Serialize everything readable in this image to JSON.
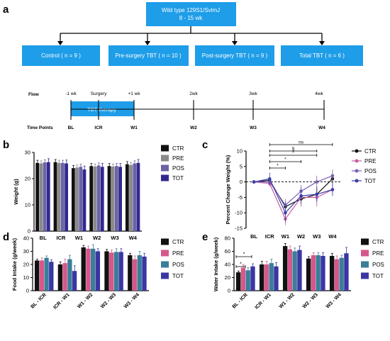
{
  "colors": {
    "box_fill": "#1e9de8",
    "box_text": "#ffffff",
    "axis": "#000000",
    "ctr": "#111111",
    "pre": "#d6578b",
    "pos": "#3a7e98",
    "tot": "#3b36a4",
    "b_pre": "#8a8a8a",
    "b_pos": "#6b63a6",
    "b_tot": "#31288f",
    "c_pre": "#c35e9f",
    "c_pos": "#7a5fb4",
    "c_tot": "#3a3da8"
  },
  "panel_a": {
    "label": "a",
    "top_box": {
      "line1": "Wild type 129S1/SvlmJ",
      "line2": "8 - 15 wk"
    },
    "groups": [
      {
        "text": "Control ( n = 9 )"
      },
      {
        "text": "Pre-surgery TBT ( n = 10 )"
      },
      {
        "text": "Post-surgery TBT ( n = 9 )"
      },
      {
        "text": "Total TBT ( n = 6 )"
      }
    ],
    "flow_label": "Flow",
    "time_points_label": "Time Points",
    "therapy_box": "TBT therapy",
    "flow_ticks": [
      "-1 wk",
      "Surgery",
      "+1 wk",
      "2wk",
      "3wk",
      "4wk"
    ],
    "time_points": [
      "BL",
      "ICR",
      "W1",
      "W2",
      "W3",
      "W4"
    ]
  },
  "chart_data": [
    {
      "panel": "b",
      "type": "bar",
      "ylabel": "Weight (g)",
      "ylim": [
        0,
        30
      ],
      "yticks": [
        0,
        10,
        20,
        30
      ],
      "categories": [
        "BL",
        "ICR",
        "W1",
        "W2",
        "W3",
        "W4"
      ],
      "legend": [
        "CTR",
        "PRE",
        "POS",
        "TOT"
      ],
      "series": [
        {
          "name": "CTR",
          "values": [
            26.0,
            26.3,
            24.0,
            24.8,
            24.8,
            25.5
          ],
          "err": [
            1.0,
            1.0,
            1.0,
            1.0,
            1.0,
            1.0
          ]
        },
        {
          "name": "PRE",
          "values": [
            25.8,
            26.0,
            24.2,
            24.6,
            24.6,
            25.2
          ],
          "err": [
            1.0,
            1.0,
            1.0,
            1.0,
            1.0,
            1.0
          ]
        },
        {
          "name": "POS",
          "values": [
            26.2,
            26.0,
            24.5,
            25.0,
            24.8,
            25.8
          ],
          "err": [
            1.0,
            1.0,
            1.0,
            1.0,
            1.0,
            1.0
          ]
        },
        {
          "name": "TOT",
          "values": [
            26.3,
            25.8,
            23.5,
            24.5,
            24.5,
            26.0
          ],
          "err": [
            1.3,
            1.3,
            1.3,
            1.3,
            1.3,
            1.3
          ]
        }
      ]
    },
    {
      "panel": "c",
      "type": "line",
      "ylabel": "Percent Change Weight (%)",
      "ylim": [
        -15,
        10
      ],
      "yticks": [
        10,
        5,
        0,
        -5,
        -10,
        -15
      ],
      "categories": [
        "BL",
        "ICR",
        "W1",
        "W2",
        "W3",
        "W4"
      ],
      "legend": [
        "CTR",
        "PRE",
        "POS",
        "TOT"
      ],
      "annotations": [
        "*",
        "*",
        "*",
        "§",
        "ns"
      ],
      "series": [
        {
          "name": "CTR",
          "values": [
            0,
            0.5,
            -8.0,
            -5.5,
            -4.0,
            1.0
          ],
          "err": [
            0,
            1.0,
            1.5,
            2.0,
            2.0,
            1.5
          ]
        },
        {
          "name": "PRE",
          "values": [
            0,
            -0.5,
            -12.0,
            -5.0,
            -5.0,
            -2.5
          ],
          "err": [
            0,
            1.0,
            2.0,
            3.0,
            3.0,
            2.0
          ]
        },
        {
          "name": "POS",
          "values": [
            0,
            0.0,
            -7.5,
            -3.0,
            0.0,
            2.0
          ],
          "err": [
            0,
            1.0,
            2.0,
            2.0,
            2.0,
            2.0
          ]
        },
        {
          "name": "TOT",
          "values": [
            0,
            1.0,
            -10.0,
            -4.5,
            -4.0,
            -2.5
          ],
          "err": [
            0,
            2.0,
            3.0,
            2.5,
            2.5,
            2.0
          ]
        }
      ]
    },
    {
      "panel": "d",
      "type": "bar",
      "ylabel": "Food Intake (g/week)",
      "ylim": [
        0,
        40
      ],
      "yticks": [
        0,
        10,
        20,
        30,
        40
      ],
      "categories": [
        "BL - ICR",
        "ICR - W1",
        "W1 - W2",
        "W2 - W3",
        "W3 - W4"
      ],
      "legend": [
        "CTR",
        "PRE",
        "POS",
        "TOT"
      ],
      "series": [
        {
          "name": "CTR",
          "values": [
            23,
            20,
            33,
            30,
            27
          ],
          "err": [
            1.0,
            2.0,
            1.5,
            1.5,
            1.5
          ]
        },
        {
          "name": "PRE",
          "values": [
            23,
            21,
            32,
            29,
            24
          ],
          "err": [
            2.0,
            3.0,
            2.0,
            2.0,
            2.5
          ]
        },
        {
          "name": "POS",
          "values": [
            25,
            24,
            32,
            29.5,
            27
          ],
          "err": [
            1.5,
            3.0,
            3.0,
            2.5,
            3.0
          ]
        },
        {
          "name": "TOT",
          "values": [
            22,
            15,
            30,
            29.5,
            26
          ],
          "err": [
            1.5,
            4.0,
            2.0,
            2.5,
            2.5
          ]
        }
      ]
    },
    {
      "panel": "e",
      "type": "bar",
      "ylabel": "Water Intake (g/week)",
      "ylim": [
        0,
        80
      ],
      "yticks": [
        0,
        20,
        40,
        60,
        80
      ],
      "categories": [
        "BL - ICR",
        "ICR - W1",
        "W1 - W2",
        "W2 - W3",
        "W3 - W4"
      ],
      "legend": [
        "CTR",
        "PRE",
        "POS",
        "TOT"
      ],
      "annotations": [
        "*",
        "*"
      ],
      "series": [
        {
          "name": "CTR",
          "values": [
            28,
            40,
            68,
            49,
            53
          ],
          "err": [
            2,
            5,
            4,
            3,
            4
          ]
        },
        {
          "name": "PRE",
          "values": [
            35,
            40,
            63,
            54,
            48
          ],
          "err": [
            5,
            5,
            5,
            4,
            5
          ]
        },
        {
          "name": "POS",
          "values": [
            31,
            42,
            60,
            54,
            50
          ],
          "err": [
            4,
            6,
            5,
            4,
            4
          ]
        },
        {
          "name": "TOT",
          "values": [
            37,
            37,
            62,
            53,
            57
          ],
          "err": [
            4,
            6,
            6,
            5,
            9
          ]
        }
      ]
    }
  ],
  "panel_labels": {
    "b": "b",
    "c": "c",
    "d": "d",
    "e": "e"
  }
}
